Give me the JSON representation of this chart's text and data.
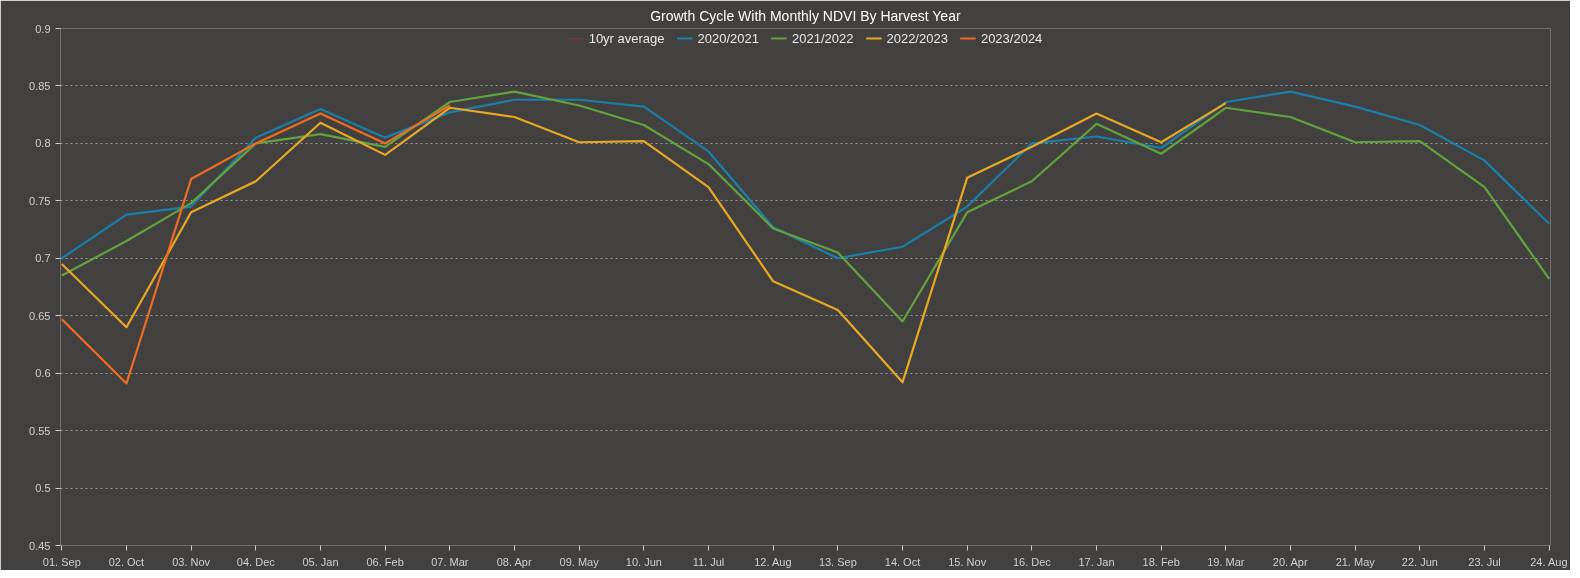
{
  "chart_data": {
    "type": "line",
    "title": "Growth Cycle With Monthly NDVI By Harvest Year",
    "categories": [
      "01. Sep",
      "02. Oct",
      "03. Nov",
      "04. Dec",
      "05. Jan",
      "06. Feb",
      "07. Mar",
      "08. Apr",
      "09. May",
      "10. Jun",
      "11. Jul",
      "12. Aug",
      "13. Sep",
      "14. Oct",
      "15. Nov",
      "16. Dec",
      "17. Jan",
      "18. Feb",
      "19. Mar",
      "20. Apr",
      "21. May",
      "22. Jun",
      "23. Jul",
      "24. Aug"
    ],
    "series": [
      {
        "name": "10yr average",
        "color": "#6b3a44",
        "values": [
          null,
          null,
          null,
          null,
          null,
          null,
          null,
          null,
          null,
          null,
          null,
          null,
          null,
          null,
          null,
          null,
          null,
          null,
          null,
          null,
          null,
          null,
          null,
          null
        ]
      },
      {
        "name": "2020/2021",
        "color": "#1a7fab",
        "values": [
          0.7,
          0.738,
          0.745,
          0.805,
          0.83,
          0.805,
          0.827,
          0.838,
          0.838,
          0.832,
          0.793,
          0.727,
          0.7,
          0.71,
          0.745,
          0.8,
          0.806,
          0.796,
          0.836,
          0.845,
          0.832,
          0.816,
          0.785,
          0.73
        ]
      },
      {
        "name": "2021/2022",
        "color": "#63a23d",
        "values": [
          0.685,
          0.715,
          0.748,
          0.8,
          0.808,
          0.797,
          0.836,
          0.845,
          0.833,
          0.816,
          0.782,
          0.726,
          0.705,
          0.645,
          0.74,
          0.767,
          0.817,
          0.791,
          0.831,
          0.823,
          0.801,
          0.802,
          0.762,
          0.682
        ]
      },
      {
        "name": "2022/2023",
        "color": "#e9a823",
        "values": [
          0.695,
          0.64,
          0.74,
          0.767,
          0.818,
          0.79,
          0.831,
          0.823,
          0.801,
          0.802,
          0.762,
          0.68,
          0.655,
          0.592,
          0.77,
          0.797,
          0.826,
          0.801,
          0.835,
          null,
          null,
          null,
          null,
          null
        ]
      },
      {
        "name": "2023/2024",
        "color": "#ef6c22",
        "values": [
          0.647,
          0.591,
          0.769,
          0.8,
          0.826,
          0.8,
          0.833,
          null,
          null,
          null,
          null,
          null,
          null,
          null,
          null,
          null,
          null,
          null,
          null,
          null,
          null,
          null,
          null,
          null
        ]
      }
    ],
    "ylim": [
      0.45,
      0.9
    ],
    "yticks": [
      0.45,
      0.5,
      0.55,
      0.6,
      0.65,
      0.7,
      0.75,
      0.8,
      0.85,
      0.9
    ],
    "grid": "y",
    "legend": "top"
  }
}
